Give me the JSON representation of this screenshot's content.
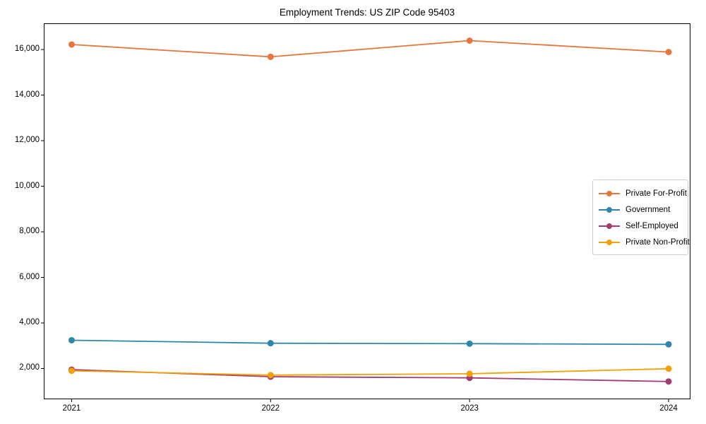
{
  "title": "Employment Trends: US ZIP Code 95403",
  "chart_data": {
    "type": "line",
    "title": "Employment Trends: US ZIP Code 95403",
    "xlabel": "",
    "ylabel": "",
    "x": [
      2021,
      2022,
      2023,
      2024
    ],
    "x_tick_labels": [
      "2021",
      "2022",
      "2023",
      "2024"
    ],
    "y_ticks": [
      2000,
      4000,
      6000,
      8000,
      10000,
      12000,
      14000,
      16000
    ],
    "y_tick_labels": [
      "2,000",
      "4,000",
      "6,000",
      "8,000",
      "10,000",
      "12,000",
      "14,000",
      "16,000"
    ],
    "xlim": [
      2020.86,
      2024.11
    ],
    "ylim": [
      650,
      17150
    ],
    "grid": false,
    "legend_position": "center right",
    "series": [
      {
        "name": "Private For-Profit",
        "color": "#e8763c",
        "values": [
          16220,
          15680,
          16390,
          15890
        ]
      },
      {
        "name": "Government",
        "color": "#2e86ab",
        "values": [
          3240,
          3110,
          3090,
          3060
        ]
      },
      {
        "name": "Self-Employed",
        "color": "#a23b72",
        "values": [
          1950,
          1640,
          1590,
          1430
        ]
      },
      {
        "name": "Private Non-Profit",
        "color": "#f2a104",
        "values": [
          1900,
          1710,
          1770,
          1990
        ]
      }
    ]
  },
  "colors": {
    "spine": "#000000",
    "legend_border": "#cccccc",
    "background": "#ffffff"
  }
}
